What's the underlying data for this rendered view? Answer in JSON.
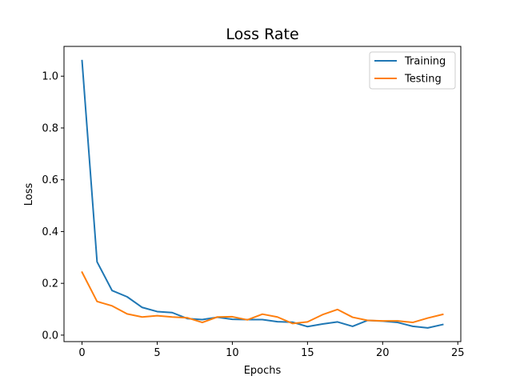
{
  "chart_data": {
    "type": "line",
    "title": "Loss Rate",
    "xlabel": "Epochs",
    "ylabel": "Loss",
    "xlim": [
      -1.2,
      25.2
    ],
    "ylim": [
      -0.025,
      1.115
    ],
    "xticks": [
      0,
      5,
      10,
      15,
      20,
      25
    ],
    "xtick_labels": [
      "0",
      "5",
      "10",
      "15",
      "20",
      "25"
    ],
    "yticks": [
      0.0,
      0.2,
      0.4,
      0.6,
      0.8,
      1.0
    ],
    "ytick_labels": [
      "0.0",
      "0.2",
      "0.4",
      "0.6",
      "0.8",
      "1.0"
    ],
    "grid": false,
    "legend_position": "top-right",
    "x": [
      0,
      1,
      2,
      3,
      4,
      5,
      6,
      7,
      8,
      9,
      10,
      11,
      12,
      13,
      14,
      15,
      16,
      17,
      18,
      19,
      20,
      21,
      22,
      23,
      24
    ],
    "series": [
      {
        "name": "Training",
        "color": "#1f77b4",
        "values": [
          1.06,
          0.283,
          0.172,
          0.148,
          0.107,
          0.091,
          0.087,
          0.064,
          0.06,
          0.069,
          0.061,
          0.06,
          0.06,
          0.052,
          0.05,
          0.033,
          0.043,
          0.051,
          0.034,
          0.057,
          0.054,
          0.049,
          0.034,
          0.028,
          0.041
        ]
      },
      {
        "name": "Testing",
        "color": "#ff7f0e",
        "values": [
          0.243,
          0.13,
          0.113,
          0.082,
          0.07,
          0.075,
          0.07,
          0.067,
          0.049,
          0.07,
          0.071,
          0.059,
          0.081,
          0.07,
          0.045,
          0.051,
          0.079,
          0.099,
          0.069,
          0.057,
          0.055,
          0.055,
          0.049,
          0.066,
          0.08
        ]
      }
    ]
  }
}
